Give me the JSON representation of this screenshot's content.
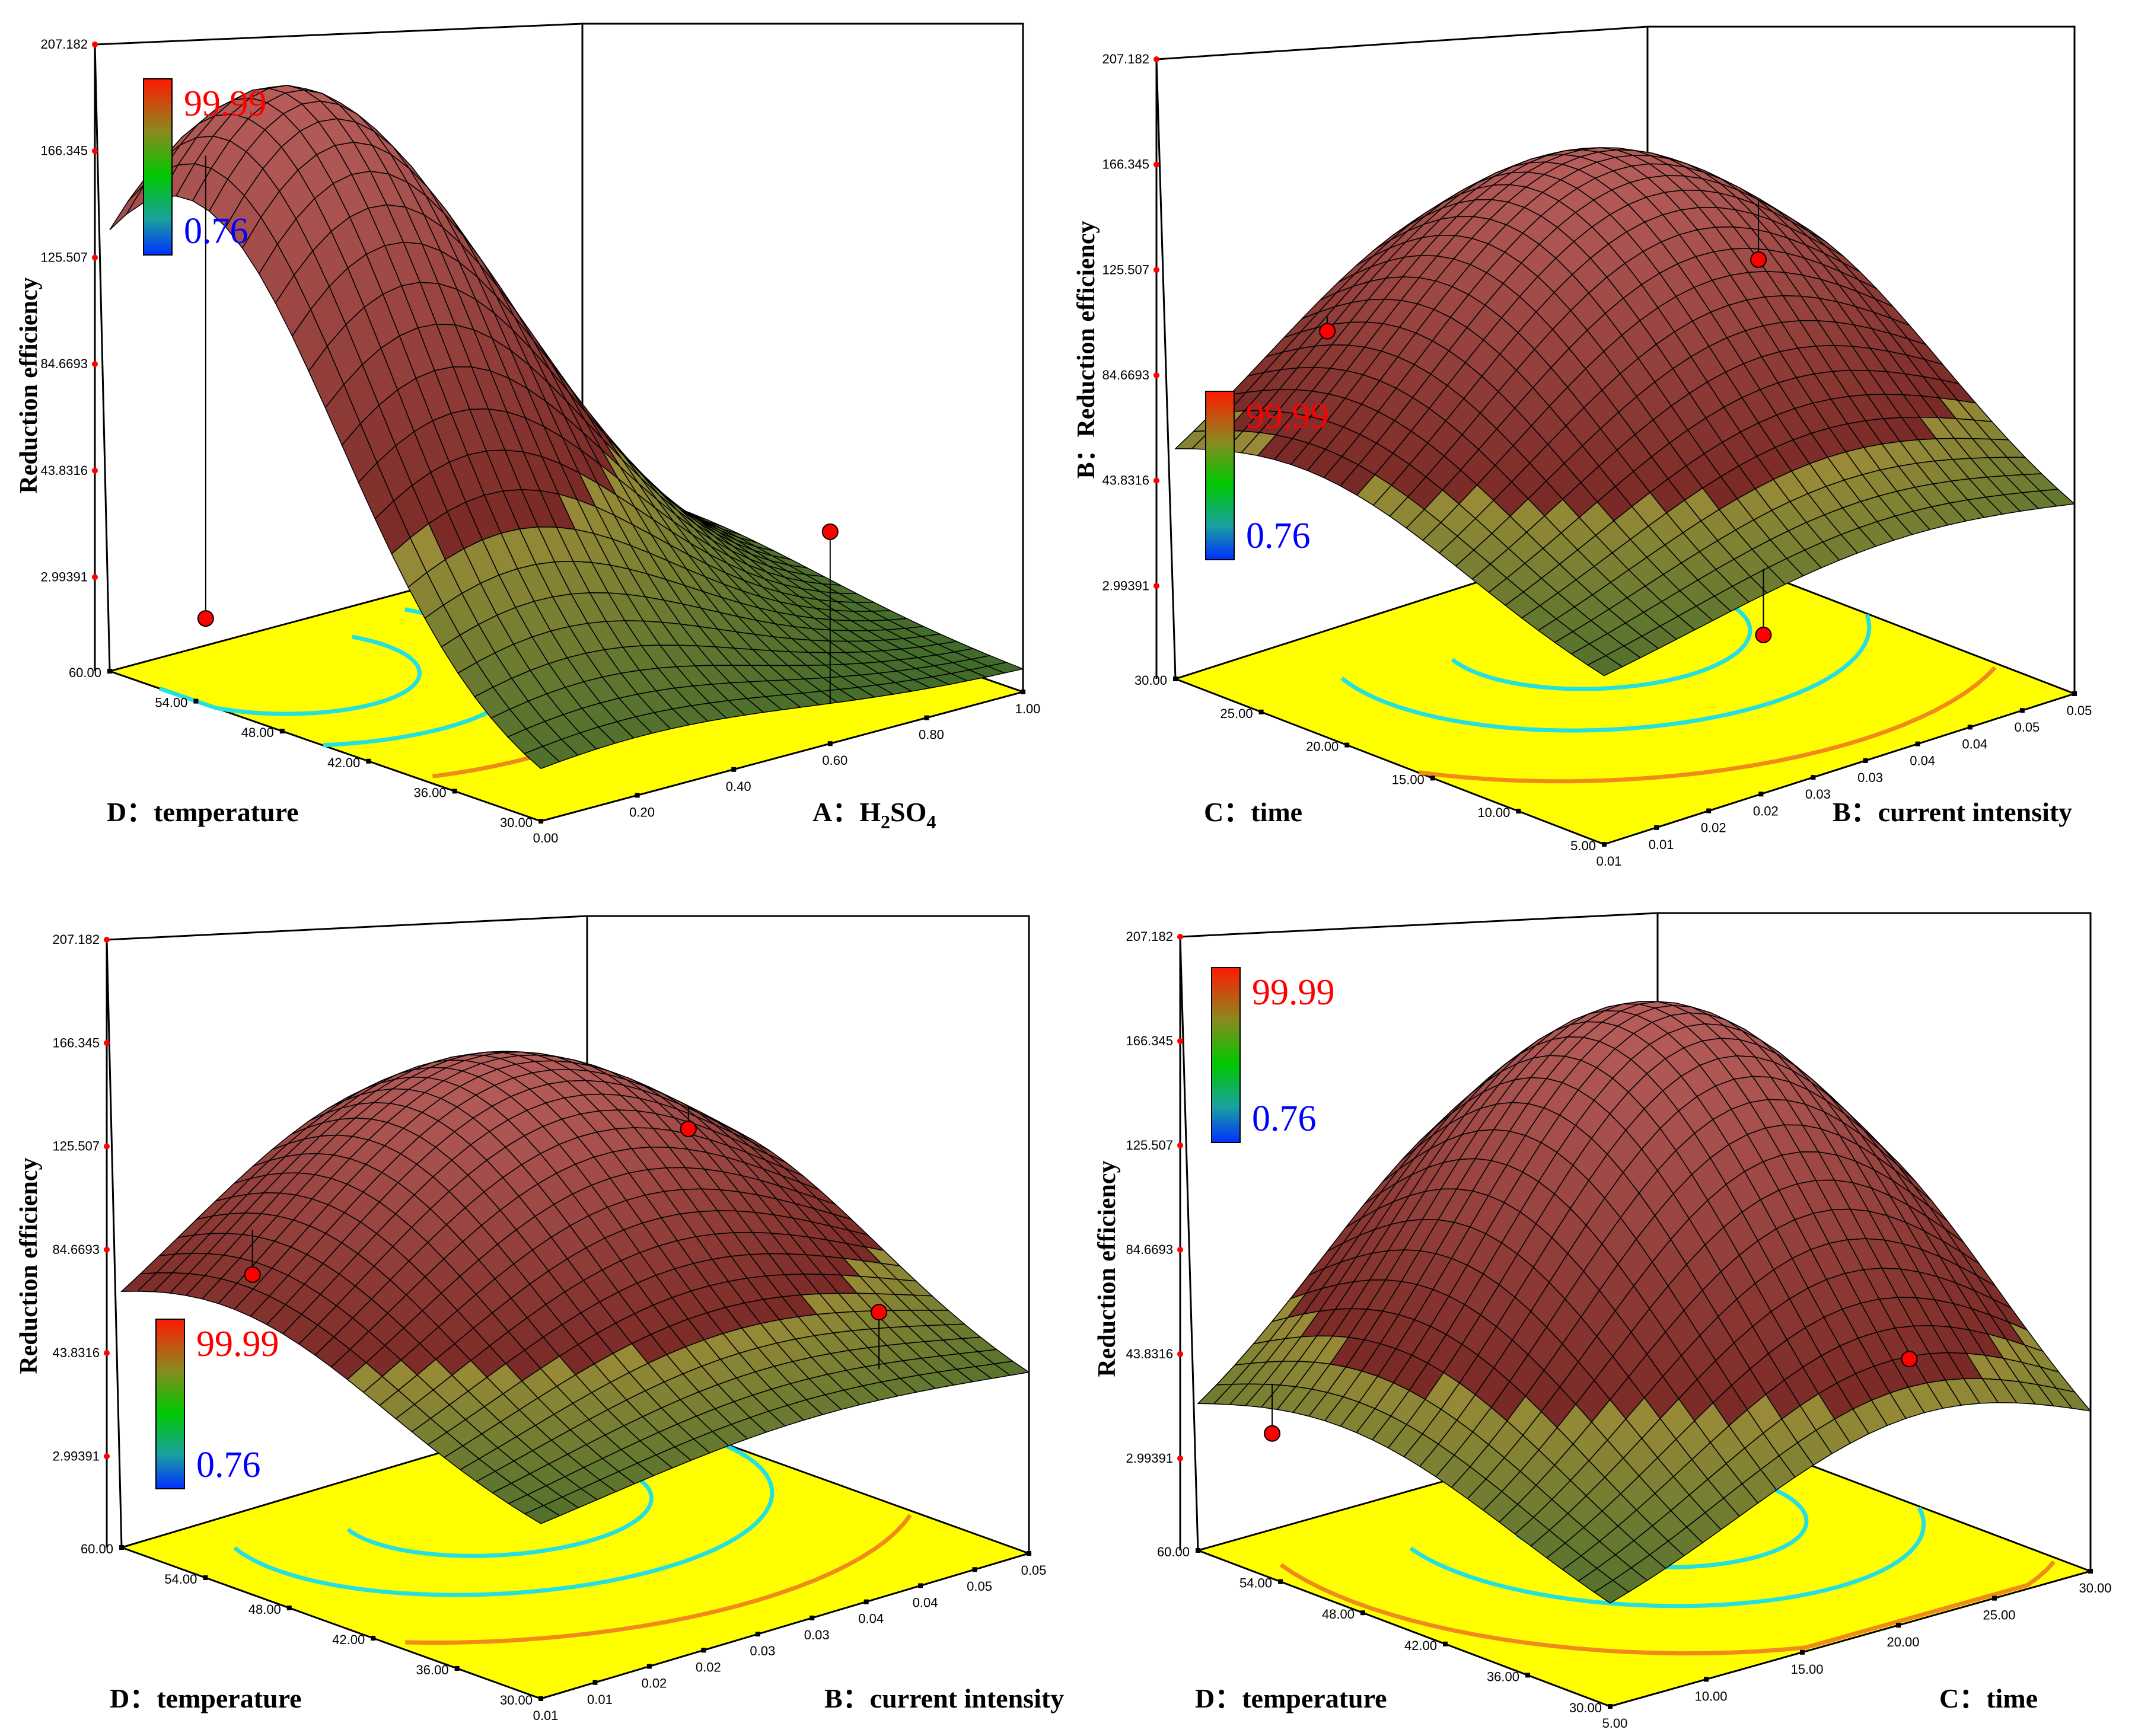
{
  "figure": {
    "colors": {
      "surface_dark": "#000000",
      "surface_mid": "#7a2a26",
      "surface_light": "#f29090",
      "surface_low": "#3f6a2a",
      "surface_warm": "#d4a040",
      "floor": "#ffff00",
      "contour_high": "#25e0e0",
      "contour_low": "#f08a1a",
      "point": "#ff0000",
      "legend_high": "#ff0000",
      "legend_low": "#0000ff"
    }
  },
  "chart_data": [
    {
      "type": "surface3d",
      "panel": "top-left",
      "zlabel": "Reduction efficiency",
      "zlim": [
        -37.84,
        207.182
      ],
      "zticks": [
        "207.182",
        "166.345",
        "125.507",
        "84.6693",
        "43.8316",
        "2.99391"
      ],
      "legend": {
        "high": "99.99",
        "low": "0.76"
      },
      "x_factor": {
        "label": "A：H",
        "sub1": "2",
        "mid": "SO",
        "sub2": "4",
        "ticks": [
          "0.00",
          "0.20",
          "0.40",
          "0.60",
          "0.80",
          "1.00"
        ],
        "range": [
          0,
          1
        ]
      },
      "y_factor": {
        "label": "D：temperature",
        "ticks": [
          "30.00",
          "36.00",
          "42.00",
          "48.00",
          "54.00",
          "60.00"
        ],
        "range": [
          30,
          60
        ]
      },
      "design_points": [
        {
          "x": 0.6,
          "y": 30,
          "z": 45
        },
        {
          "x": 0.05,
          "y": 55,
          "z": -10
        }
      ]
    },
    {
      "type": "surface3d",
      "panel": "top-right",
      "zlabel": "Reduction efficiency",
      "zprefix": "B：",
      "zlim": [
        -37.84,
        207.182
      ],
      "zticks": [
        "207.182",
        "166.345",
        "125.507",
        "84.6693",
        "43.8316",
        "2.99391"
      ],
      "legend": {
        "high": "99.99",
        "low": "0.76"
      },
      "x_factor": {
        "label": "B：current intensity",
        "ticks": [
          "0.01",
          "0.01",
          "0.02",
          "0.02",
          "0.03",
          "0.03",
          "0.04",
          "0.04",
          "0.05",
          "0.05"
        ],
        "range": [
          0.01,
          0.05
        ]
      },
      "y_factor": {
        "label": "C：time",
        "ticks": [
          "5.00",
          "10.00",
          "15.00",
          "20.00",
          "25.00",
          "30.00"
        ],
        "range": [
          5,
          30
        ]
      },
      "design_points": [
        {
          "x": 0.045,
          "y": 20,
          "z": 102
        },
        {
          "x": 0.02,
          "y": 28,
          "z": 90
        },
        {
          "x": 0.025,
          "y": 6,
          "z": 20
        }
      ]
    },
    {
      "type": "surface3d",
      "panel": "bottom-left",
      "zlabel": "Reduction efficiency",
      "zlim": [
        -37.84,
        207.182
      ],
      "zticks": [
        "207.182",
        "166.345",
        "125.507",
        "84.6693",
        "43.8316",
        "2.99391"
      ],
      "legend": {
        "high": "99.99",
        "low": "0.76"
      },
      "x_factor": {
        "label": "B：current intensity",
        "ticks": [
          "0.01",
          "0.01",
          "0.02",
          "0.02",
          "0.03",
          "0.03",
          "0.04",
          "0.04",
          "0.05",
          "0.05"
        ],
        "range": [
          0.01,
          0.05
        ]
      },
      "y_factor": {
        "label": "D：temperature",
        "ticks": [
          "30.00",
          "36.00",
          "42.00",
          "48.00",
          "54.00",
          "60.00"
        ],
        "range": [
          30,
          60
        ]
      },
      "design_points": [
        {
          "x": 0.045,
          "y": 50,
          "z": 100
        },
        {
          "x": 0.04,
          "y": 32,
          "z": 70
        },
        {
          "x": 0.015,
          "y": 55,
          "z": 75
        }
      ]
    },
    {
      "type": "surface3d",
      "panel": "bottom-right",
      "zlabel": "Reduction efficiency",
      "zlim": [
        -37.84,
        207.182
      ],
      "zticks": [
        "207.182",
        "166.345",
        "125.507",
        "84.6693",
        "43.8316",
        "2.99391"
      ],
      "legend": {
        "high": "99.99",
        "low": "0.76"
      },
      "x_factor": {
        "label": "C：time",
        "ticks": [
          "5.00",
          "10.00",
          "15.00",
          "20.00",
          "25.00",
          "30.00"
        ],
        "range": [
          5,
          30
        ]
      },
      "y_factor": {
        "label": "D：temperature",
        "ticks": [
          "30.00",
          "36.00",
          "42.00",
          "48.00",
          "54.00",
          "60.00"
        ],
        "range": [
          30,
          60
        ]
      },
      "design_points": [
        {
          "x": 22,
          "y": 32,
          "z": 60
        },
        {
          "x": 6,
          "y": 56,
          "z": 15
        }
      ]
    }
  ]
}
